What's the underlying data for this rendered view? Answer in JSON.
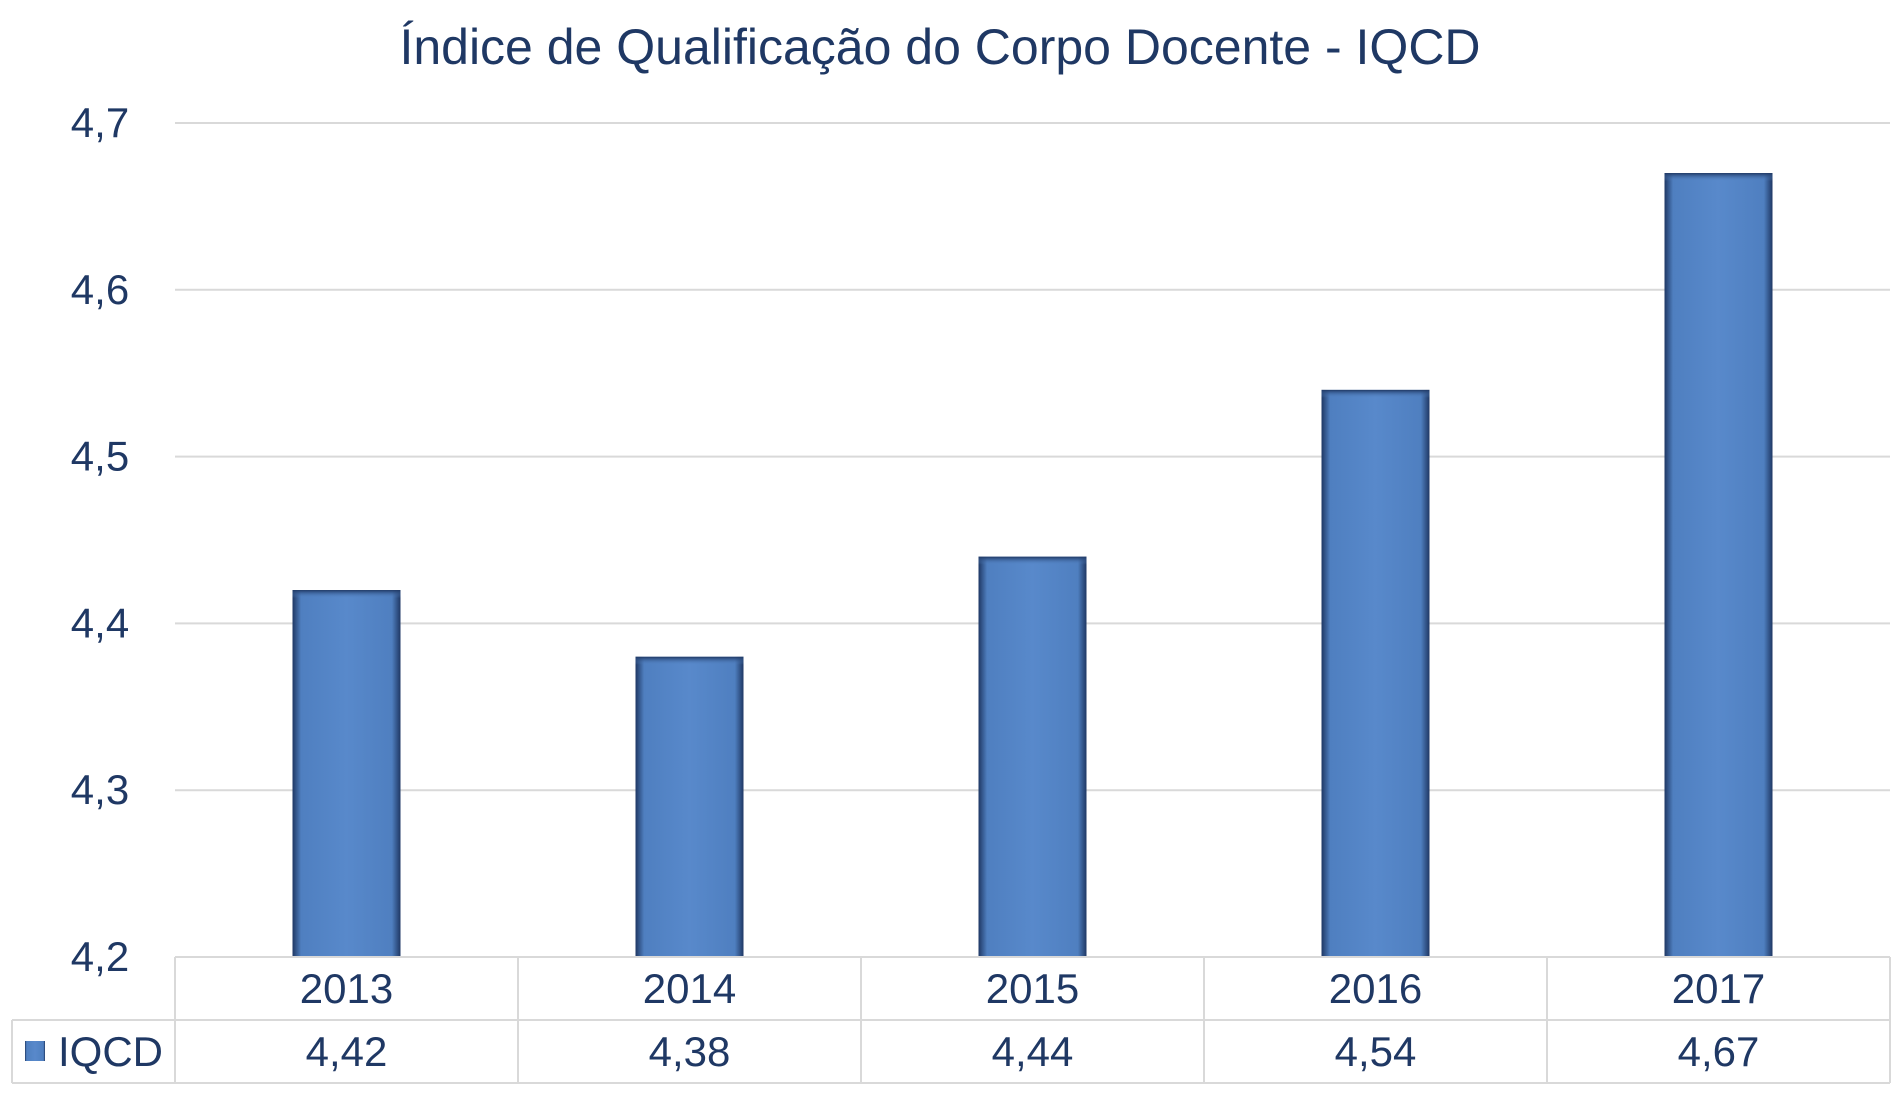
{
  "chart_data": {
    "type": "bar",
    "title": "Índice de Qualificação do Corpo Docente - IQCD",
    "categories": [
      "2013",
      "2014",
      "2015",
      "2016",
      "2017"
    ],
    "series": [
      {
        "name": "IQCD",
        "values": [
          4.42,
          4.38,
          4.44,
          4.54,
          4.67
        ],
        "value_labels": [
          "4,42",
          "4,38",
          "4,44",
          "4,54",
          "4,67"
        ]
      }
    ],
    "ylim": [
      4.2,
      4.7
    ],
    "yticks": [
      4.2,
      4.3,
      4.4,
      4.5,
      4.6,
      4.7
    ],
    "ytick_labels": [
      "4,2",
      "4,3",
      "4,4",
      "4,5",
      "4,6",
      "4,7"
    ],
    "grid": true,
    "data_table": true,
    "legend_position": "data-table-left",
    "colors": {
      "bar": "#5585C5",
      "bar_edge": "#1F3864",
      "text": "#1F3864",
      "grid": "#D9D9D9",
      "table_border": "#D9D9D9"
    }
  }
}
